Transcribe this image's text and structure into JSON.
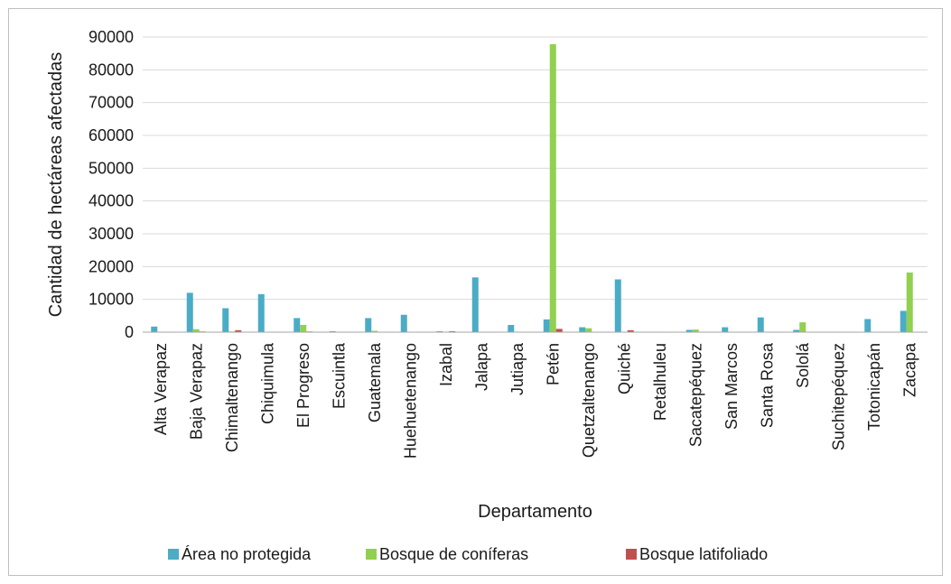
{
  "chart_data": {
    "type": "bar",
    "xlabel": "Departamento",
    "ylabel": "Cantidad de hectáreas afectadas",
    "ylim": [
      0,
      90000
    ],
    "yticks": [
      0,
      10000,
      20000,
      30000,
      40000,
      50000,
      60000,
      70000,
      80000,
      90000
    ],
    "grid": true,
    "legend_position": "bottom",
    "categories": [
      "Alta Verapaz",
      "Baja Verapaz",
      "Chimaltenango",
      "Chiquimula",
      "El Progreso",
      "Escuintla",
      "Guatemala",
      "Huehuetenango",
      "Izabal",
      "Jalapa",
      "Jutiapa",
      "Petén",
      "Quetzaltenango",
      "Quiché",
      "Retalhuleu",
      "Sacatepéquez",
      "San Marcos",
      "Santa Rosa",
      "Sololá",
      "Suchitepéquez",
      "Totonicapán",
      "Zacapa"
    ],
    "series": [
      {
        "name": "Área no protegida",
        "color": "#4bacc6",
        "values": [
          1700,
          12000,
          7300,
          11600,
          4300,
          300,
          4300,
          5300,
          300,
          16700,
          2200,
          3900,
          1500,
          16100,
          100,
          700,
          1500,
          4500,
          700,
          100,
          4000,
          6500
        ]
      },
      {
        "name": "Bosque de coníferas",
        "color": "#92d050",
        "values": [
          0,
          900,
          200,
          0,
          2200,
          0,
          400,
          0,
          0,
          0,
          0,
          87800,
          1200,
          100,
          0,
          800,
          0,
          0,
          3000,
          0,
          0,
          18200
        ]
      },
      {
        "name": "Bosque latifoliado",
        "color": "#c0504d",
        "values": [
          100,
          200,
          600,
          0,
          200,
          0,
          0,
          0,
          300,
          0,
          100,
          1000,
          0,
          600,
          0,
          0,
          0,
          0,
          0,
          0,
          0,
          0
        ]
      }
    ]
  }
}
